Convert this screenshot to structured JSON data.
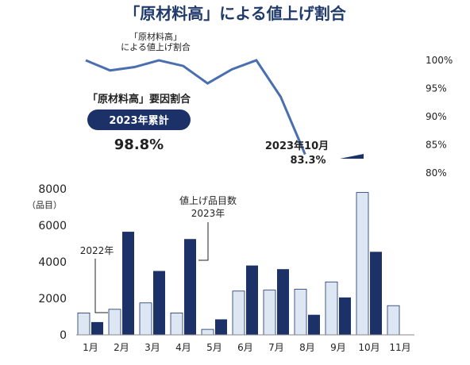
{
  "title": "「原材料高」による値上げ割合",
  "colors": {
    "line": "#4a6fb0",
    "bar_2022": "#dde7f4",
    "bar_2023": "#1b3168",
    "title": "#1f3a6b"
  },
  "chart_data": [
    {
      "type": "line",
      "series_label": [
        "「原材料高」",
        "による値上げ割合"
      ],
      "x": [
        "1月",
        "2月",
        "3月",
        "4月",
        "5月",
        "6月",
        "7月",
        "8月",
        "9月",
        "10月"
      ],
      "values": [
        100.0,
        98.2,
        98.8,
        100.0,
        99.0,
        95.9,
        98.4,
        100.0,
        93.5,
        83.3
      ],
      "ylim": [
        80,
        100
      ],
      "y_ticks": [
        "100%",
        "95%",
        "90%",
        "85%",
        "80%"
      ],
      "y_tick_values": [
        100,
        95,
        90,
        85,
        80
      ],
      "annotation": {
        "line1": "2023年10月",
        "line2": "83.3%"
      },
      "summary": {
        "label": "「原材料高」要因割合",
        "badge": "2023年累計",
        "value": "98.8%"
      }
    },
    {
      "type": "bar",
      "categories": [
        "1月",
        "2月",
        "3月",
        "4月",
        "5月",
        "6月",
        "7月",
        "8月",
        "9月",
        "10月",
        "11月"
      ],
      "series": [
        {
          "name": "2022年",
          "values": [
            1200,
            1400,
            1750,
            1200,
            300,
            2400,
            2450,
            2500,
            2900,
            7800,
            1600
          ]
        },
        {
          "name": "値上げ品目数 2023年",
          "values": [
            700,
            5650,
            3500,
            5250,
            850,
            3800,
            3600,
            1100,
            2050,
            4550,
            null
          ]
        }
      ],
      "ylim": [
        0,
        8000
      ],
      "y_ticks": [
        "8000",
        "6000",
        "4000",
        "2000",
        "0"
      ],
      "y_tick_values": [
        8000,
        6000,
        4000,
        2000,
        0
      ],
      "ylabel": "（品目）",
      "legend": {
        "y2022": "2022年",
        "y2023_line1": "値上げ品目数",
        "y2023_line2": "2023年"
      }
    }
  ]
}
